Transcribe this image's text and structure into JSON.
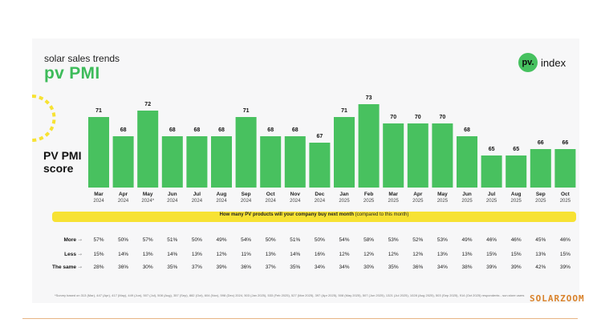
{
  "header": {
    "subtitle": "solar sales trends",
    "title": "pv PMI",
    "logo_badge": "pv.",
    "logo_text": "index"
  },
  "colors": {
    "bar": "#48c15f",
    "accent_yellow": "#f7e233",
    "title_green": "#3dbb5a",
    "brand_orange": "#d9822b"
  },
  "chart_data": {
    "type": "bar",
    "ylabel": "PV PMI score",
    "categories": [
      {
        "month": "Mar",
        "year": "2024"
      },
      {
        "month": "Apr",
        "year": "2024"
      },
      {
        "month": "May",
        "year": "2024*"
      },
      {
        "month": "Jun",
        "year": "2024"
      },
      {
        "month": "Jul",
        "year": "2024"
      },
      {
        "month": "Aug",
        "year": "2024"
      },
      {
        "month": "Sep",
        "year": "2024"
      },
      {
        "month": "Oct",
        "year": "2024"
      },
      {
        "month": "Nov",
        "year": "2024"
      },
      {
        "month": "Dec",
        "year": "2024"
      },
      {
        "month": "Jan",
        "year": "2025"
      },
      {
        "month": "Feb",
        "year": "2025"
      },
      {
        "month": "Mar",
        "year": "2025"
      },
      {
        "month": "Apr",
        "year": "2025"
      },
      {
        "month": "May",
        "year": "2025"
      },
      {
        "month": "Jun",
        "year": "2025"
      },
      {
        "month": "Jul",
        "year": "2025"
      },
      {
        "month": "Aug",
        "year": "2025"
      },
      {
        "month": "Sep",
        "year": "2025"
      },
      {
        "month": "Oct",
        "year": "2025"
      }
    ],
    "values": [
      71,
      68,
      72,
      68,
      68,
      68,
      71,
      68,
      68,
      67,
      71,
      73,
      70,
      70,
      70,
      68,
      65,
      65,
      66,
      66
    ]
  },
  "survey": {
    "question": "How many PV products will your company buy next month",
    "question_note": "(compared to this month)",
    "rows": [
      {
        "label": "More",
        "values": [
          "57%",
          "50%",
          "57%",
          "51%",
          "50%",
          "49%",
          "54%",
          "50%",
          "51%",
          "50%",
          "54%",
          "58%",
          "53%",
          "52%",
          "53%",
          "49%",
          "46%",
          "46%",
          "45%",
          "46%"
        ]
      },
      {
        "label": "Less",
        "values": [
          "15%",
          "14%",
          "13%",
          "14%",
          "13%",
          "12%",
          "11%",
          "13%",
          "14%",
          "16%",
          "12%",
          "12%",
          "12%",
          "12%",
          "13%",
          "13%",
          "15%",
          "15%",
          "13%",
          "15%"
        ]
      },
      {
        "label": "The same",
        "values": [
          "28%",
          "36%",
          "30%",
          "35%",
          "37%",
          "39%",
          "36%",
          "37%",
          "35%",
          "34%",
          "34%",
          "30%",
          "35%",
          "36%",
          "34%",
          "38%",
          "39%",
          "39%",
          "42%",
          "39%"
        ]
      }
    ]
  },
  "footnote": "*Survey based on 313 (Mar), 447 (Apr), 417 (May), 449 (Jun), 507 (Jul), 508 (Aug), 357 (Sep), 882 (Oct), 604 (Nov), 598 (Dec) 2024, 503 (Jan 2025), 533 (Feb 2025), 527 (Mar 2025), 397 (Apr 2025), 508 (May 2025), 507 (Jun 2025), 1321 (Jul 2025), 1028 (Aug 2025), 503 (Sep 2025), 914 (Oct 2025) respondents - sun.store users",
  "brand": "SOLARZOOM"
}
